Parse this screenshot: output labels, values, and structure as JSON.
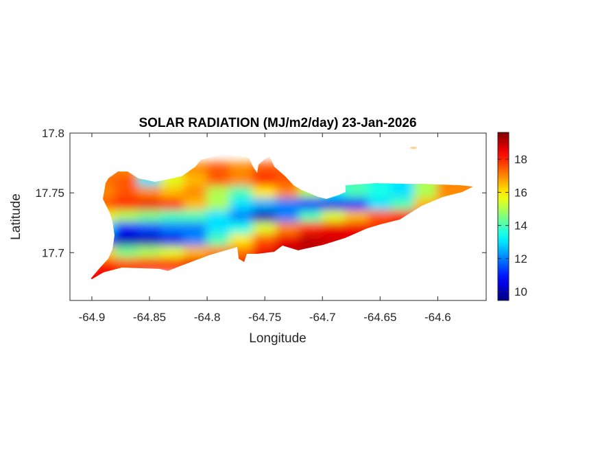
{
  "chart_data": {
    "type": "heatmap",
    "title": "SOLAR RADIATION (MJ/m2/day) 23-Jan-2026",
    "xlabel": "Longitude",
    "ylabel": "Latitude",
    "xlim": [
      -64.919,
      -64.558
    ],
    "ylim": [
      17.66,
      17.8
    ],
    "xticks": [
      -64.9,
      -64.85,
      -64.8,
      -64.75,
      -64.7,
      -64.65,
      -64.6
    ],
    "xtick_labels": [
      "-64.9",
      "-64.85",
      "-64.8",
      "-64.75",
      "-64.7",
      "-64.65",
      "-64.6"
    ],
    "yticks": [
      17.7,
      17.75,
      17.8
    ],
    "ytick_labels": [
      "17.7",
      "17.75",
      "17.8"
    ],
    "colormap": "jet",
    "colorbar": {
      "range": [
        9.47,
        19.62
      ],
      "ticks": [
        10,
        12,
        14,
        16,
        18
      ],
      "tick_labels": [
        "10",
        "12",
        "14",
        "16",
        "18"
      ],
      "location": "right"
    },
    "grid": false,
    "lon": [
      -64.89,
      -64.87,
      -64.85,
      -64.83,
      -64.81,
      -64.79,
      -64.77,
      -64.75,
      -64.73,
      -64.71,
      -64.69,
      -64.67,
      -64.65,
      -64.63,
      -64.61,
      -64.59,
      -64.57
    ],
    "lat": [
      17.77,
      17.76,
      17.75,
      17.74,
      17.73,
      17.72,
      17.71,
      17.7,
      17.69
    ],
    "values": [
      [
        null,
        17,
        null,
        null,
        17,
        17.5,
        17,
        null,
        null,
        null,
        null,
        null,
        null,
        null,
        null,
        null,
        null
      ],
      [
        null,
        17.5,
        13,
        15.5,
        16.5,
        17.5,
        17,
        18,
        17.5,
        null,
        null,
        null,
        null,
        null,
        null,
        null,
        null
      ],
      [
        17,
        17.5,
        17,
        16.5,
        17,
        15,
        14,
        16,
        17,
        15,
        null,
        14,
        13.5,
        13,
        15,
        17,
        17
      ],
      [
        17.5,
        18,
        18.5,
        18,
        16.5,
        15,
        13,
        12.5,
        12,
        11,
        10.5,
        11,
        13,
        14,
        16.5,
        null,
        null
      ],
      [
        16,
        15,
        14.5,
        14,
        14,
        13,
        12,
        10,
        12,
        14,
        15.5,
        16.5,
        17.5,
        18,
        null,
        null,
        null
      ],
      [
        13,
        11,
        11.5,
        12,
        12,
        13,
        13.5,
        15.5,
        17,
        18,
        18.5,
        18.5,
        null,
        null,
        null,
        null,
        null
      ],
      [
        null,
        10,
        10,
        10.5,
        12,
        14,
        16,
        17.5,
        18.5,
        19,
        null,
        null,
        null,
        null,
        null,
        null,
        null
      ],
      [
        null,
        14.5,
        15,
        15.5,
        16.5,
        17,
        null,
        18.5,
        19,
        null,
        null,
        null,
        null,
        null,
        null,
        null,
        null
      ],
      [
        18,
        17.5,
        18,
        18,
        18.5,
        18.5,
        null,
        null,
        null,
        null,
        null,
        null,
        null,
        null,
        null,
        null,
        null
      ]
    ]
  }
}
